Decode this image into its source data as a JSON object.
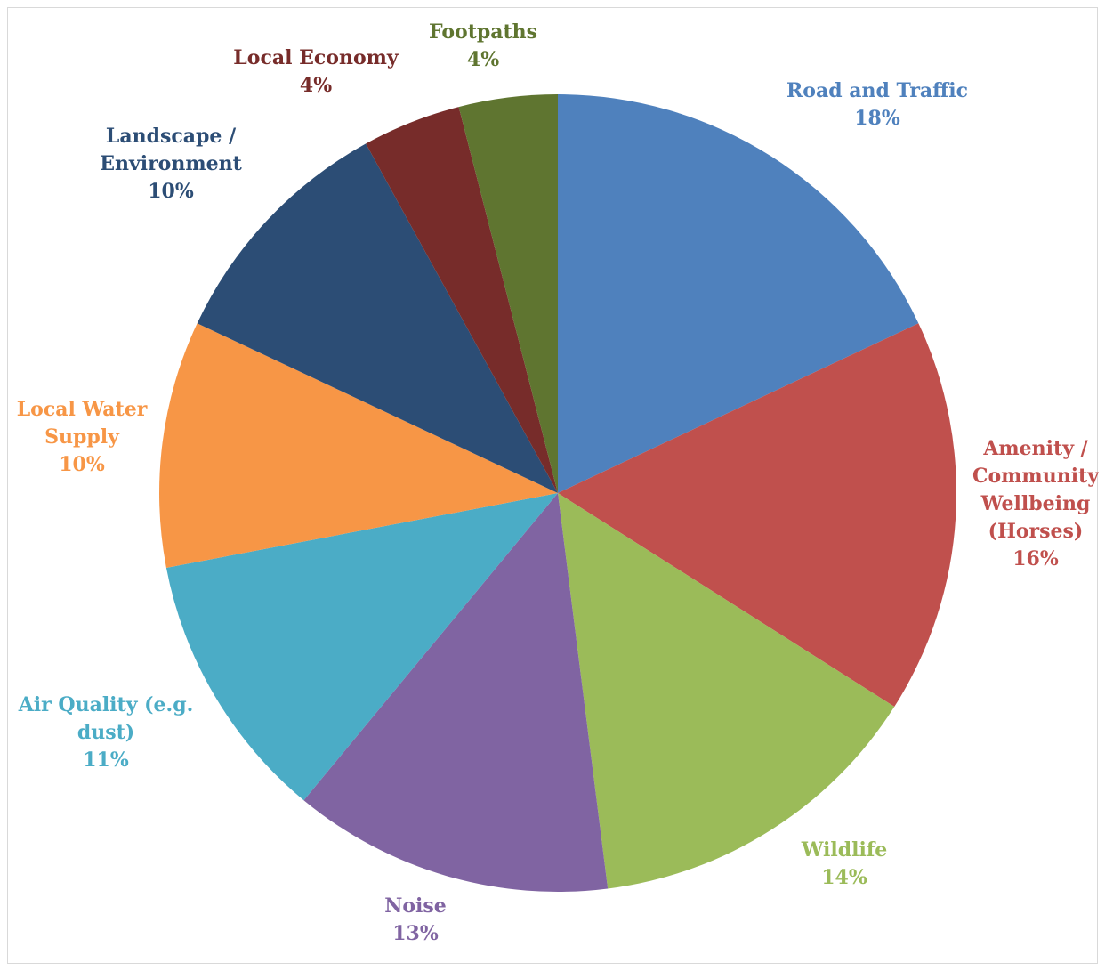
{
  "chart_data": {
    "type": "pie",
    "title": "",
    "slices": [
      {
        "label_lines": [
          "Road and Traffic"
        ],
        "percent_text": "18%",
        "value": 18,
        "color": "#4f81bd"
      },
      {
        "label_lines": [
          "Amenity /",
          "Community",
          "Wellbeing",
          "(Horses)"
        ],
        "percent_text": "16%",
        "value": 16,
        "color": "#c0504d"
      },
      {
        "label_lines": [
          "Wildlife"
        ],
        "percent_text": "14%",
        "value": 14,
        "color": "#9bbb59"
      },
      {
        "label_lines": [
          "Noise"
        ],
        "percent_text": "13%",
        "value": 13,
        "color": "#8064a2"
      },
      {
        "label_lines": [
          "Air Quality (e.g.",
          "dust)"
        ],
        "percent_text": "11%",
        "value": 11,
        "color": "#4bacc6"
      },
      {
        "label_lines": [
          "Local Water",
          "Supply"
        ],
        "percent_text": "10%",
        "value": 10,
        "color": "#f79646"
      },
      {
        "label_lines": [
          "Landscape /",
          "Environment"
        ],
        "percent_text": "10%",
        "value": 10,
        "color": "#2c4d75"
      },
      {
        "label_lines": [
          "Local Economy"
        ],
        "percent_text": "4%",
        "value": 4,
        "color": "#772c2a"
      },
      {
        "label_lines": [
          "Footpaths"
        ],
        "percent_text": "4%",
        "value": 4,
        "color": "#5f7530"
      }
    ],
    "start_angle_deg": 0,
    "direction": "clockwise",
    "legend": "none",
    "data_labels": "outside"
  }
}
